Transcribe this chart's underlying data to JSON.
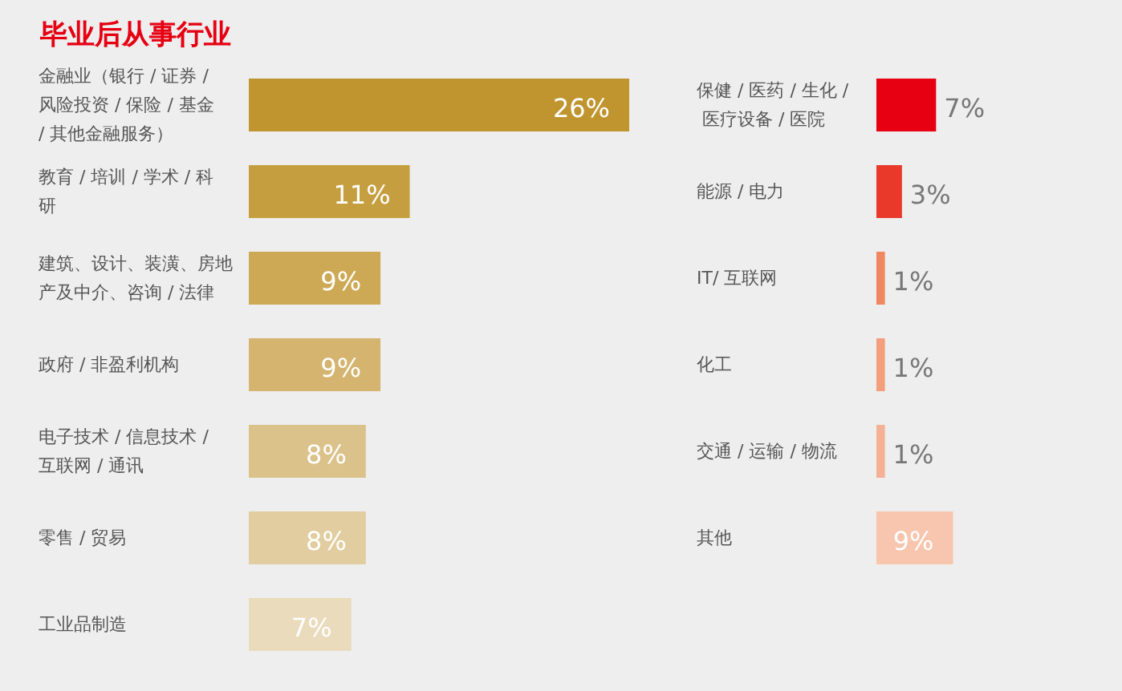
{
  "chart_data": [
    {
      "type": "bar",
      "orientation": "horizontal",
      "title": "毕业后从事行业",
      "categories": [
        "金融业（银行 / 证券 / 风险投资 / 保险 / 基金 / 其他金融服务）",
        "教育 / 培训 / 学术 / 科研",
        "建筑、设计、装潢、房地产及中介、咨询 / 法律",
        "政府 / 非盈利机构",
        "电子技术 / 信息技术 / 互联网 / 通讯",
        "零售 / 贸易",
        "工业品制造"
      ],
      "values": [
        26,
        11,
        9,
        9,
        8,
        8,
        7
      ],
      "value_labels": [
        "26%",
        "11%",
        "9%",
        "9%",
        "8%",
        "8%",
        "7%"
      ],
      "colors": [
        "#c0952f",
        "#c59e3f",
        "#cda955",
        "#d4b46e",
        "#dbc28b",
        "#e2cda0",
        "#e9dbbb"
      ]
    },
    {
      "type": "bar",
      "orientation": "horizontal",
      "categories": [
        "保健 / 医药 / 生化 / 医疗设备 / 医院",
        "能源 / 电力",
        "IT/ 互联网",
        "化工",
        "交通 / 运输 / 物流",
        "其他"
      ],
      "values": [
        7,
        3,
        1,
        1,
        1,
        9
      ],
      "value_labels": [
        "7%",
        "3%",
        "1%",
        "1%",
        "1%",
        "9%"
      ],
      "colors": [
        "#e60012",
        "#e8392a",
        "#ef8760",
        "#f39e7c",
        "#f5b195",
        "#f8c6ae"
      ]
    }
  ]
}
